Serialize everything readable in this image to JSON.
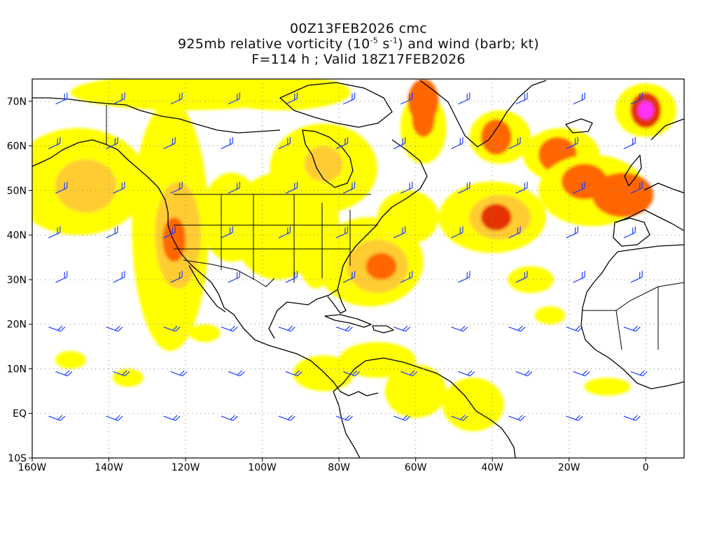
{
  "title": {
    "line1": "00Z13FEB2026 cmc",
    "line2_a": "925mb relative vorticity (10",
    "line2_sup1": "-5",
    "line2_b": " s",
    "line2_sup2": "-1",
    "line2_c": ") and wind (barb; kt)",
    "line3": "F=114 h ; Valid 18Z17FEB2026"
  },
  "map": {
    "lon_range": [
      -160,
      10
    ],
    "lat_range": [
      -10,
      75
    ],
    "x_ticks": [
      "160W",
      "140W",
      "120W",
      "100W",
      "80W",
      "60W",
      "40W",
      "20W",
      "0"
    ],
    "x_tick_values": [
      -160,
      -140,
      -120,
      -100,
      -80,
      -60,
      -40,
      -20,
      0
    ],
    "y_ticks": [
      "10S",
      "EQ",
      "10N",
      "20N",
      "30N",
      "40N",
      "50N",
      "60N",
      "70N"
    ],
    "y_tick_values": [
      -10,
      0,
      10,
      20,
      30,
      40,
      50,
      60,
      70
    ],
    "gridlines": "dotted",
    "colors": {
      "vort_low": "#ffff00",
      "vort_mid": "#ffcc33",
      "vort_high": "#ff6600",
      "vort_max": "#e63300",
      "vort_peak": "#ff33ff",
      "barb": "#1a3cff",
      "coast": "#000000"
    }
  }
}
